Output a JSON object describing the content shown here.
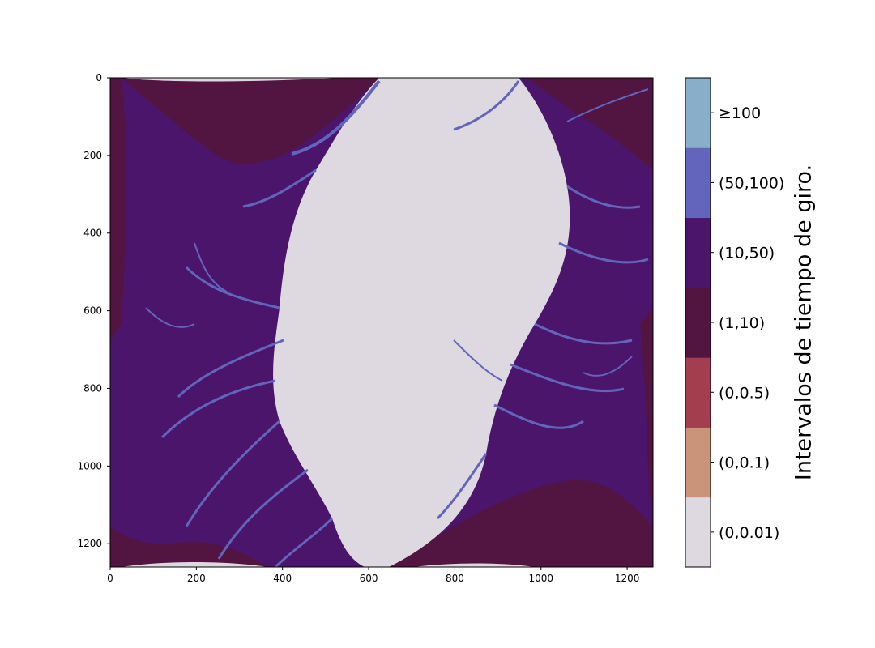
{
  "chart_data": {
    "type": "heatmap",
    "title": "",
    "xlabel": "",
    "ylabel": "",
    "x_range": [
      0,
      1260
    ],
    "y_range": [
      0,
      1260
    ],
    "y_inverted": true,
    "x_ticks": [
      0,
      200,
      400,
      600,
      800,
      1000,
      1200
    ],
    "y_ticks": [
      0,
      200,
      400,
      600,
      800,
      1000,
      1200
    ],
    "grid": false,
    "colorbar": {
      "label": "Intervalos de tiempo de giro.",
      "categories": [
        {
          "label": "(0,0.01)",
          "color": "#ded8e1"
        },
        {
          "label": "(0,0.1)",
          "color": "#c99479"
        },
        {
          "label": "(0,0.5)",
          "color": "#a33e4f"
        },
        {
          "label": "(1,10)",
          "color": "#521441"
        },
        {
          "label": "(10,50)",
          "color": "#4a156b"
        },
        {
          "label": "(50,100)",
          "color": "#6265bb"
        },
        {
          "label": "≥100",
          "color": "#89aec9"
        }
      ]
    }
  }
}
